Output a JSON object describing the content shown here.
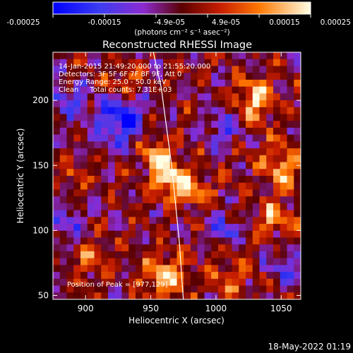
{
  "chart_data": {
    "type": "heatmap",
    "title": "Reconstructed RHESSI Image",
    "xlabel": "Heliocentric X (arcsec)",
    "ylabel": "Heliocentric Y (arcsec)",
    "xlim": [
      875,
      1065
    ],
    "ylim": [
      47,
      237
    ],
    "xticks": [
      900,
      950,
      1000,
      1050
    ],
    "yticks": [
      50,
      100,
      150,
      200
    ],
    "colorbar": {
      "range": [
        -0.00025,
        0.00025
      ],
      "ticks": [
        "-0.00025",
        "-0.00015",
        "-4.9e-05",
        "4.9e-05",
        "0.00015",
        "0.00025"
      ],
      "label": "(photons cm⁻² s⁻¹ asec⁻²)"
    },
    "info_lines": [
      "14-Jan-2015 21:49:20.000 to 21:55:20.000",
      "Detectors: 3F 5F 6F 7F 8F 9F, Att 0",
      "Energy Range: 25.0 - 50.0 keV",
      "Clean     Total counts: 7.31E+03"
    ],
    "peak_text": "Position of Peak = [977,129]",
    "peak_position": [
      977,
      129
    ],
    "limb_curve": [
      [
        952,
        237
      ],
      [
        958,
        210
      ],
      [
        962,
        180
      ],
      [
        966,
        150
      ],
      [
        969,
        120
      ],
      [
        972,
        90
      ],
      [
        974,
        60
      ],
      [
        975,
        47
      ]
    ],
    "blobs": [
      {
        "x": 965,
        "y": 140,
        "amp": 1.0,
        "sigma": 10
      },
      {
        "x": 955,
        "y": 158,
        "amp": 0.7,
        "sigma": 8
      },
      {
        "x": 985,
        "y": 130,
        "amp": 0.6,
        "sigma": 9
      },
      {
        "x": 1030,
        "y": 200,
        "amp": 0.8,
        "sigma": 12
      },
      {
        "x": 1050,
        "y": 150,
        "amp": 0.7,
        "sigma": 12
      },
      {
        "x": 1045,
        "y": 110,
        "amp": 0.6,
        "sigma": 10
      },
      {
        "x": 960,
        "y": 65,
        "amp": 0.8,
        "sigma": 12
      },
      {
        "x": 1010,
        "y": 65,
        "amp": 0.5,
        "sigma": 10
      },
      {
        "x": 905,
        "y": 80,
        "amp": 0.5,
        "sigma": 10
      },
      {
        "x": 930,
        "y": 215,
        "amp": 0.5,
        "sigma": 9
      },
      {
        "x": 890,
        "y": 140,
        "amp": 0.4,
        "sigma": 8
      },
      {
        "x": 925,
        "y": 185,
        "amp": -0.9,
        "sigma": 12
      },
      {
        "x": 885,
        "y": 200,
        "amp": -0.5,
        "sigma": 10
      },
      {
        "x": 1005,
        "y": 180,
        "amp": -0.6,
        "sigma": 9
      },
      {
        "x": 1005,
        "y": 100,
        "amp": -0.5,
        "sigma": 10
      },
      {
        "x": 885,
        "y": 105,
        "amp": -0.5,
        "sigma": 10
      },
      {
        "x": 1055,
        "y": 70,
        "amp": -0.4,
        "sigma": 9
      }
    ]
  },
  "footer": {
    "date": "18-May-2022 01:19"
  }
}
